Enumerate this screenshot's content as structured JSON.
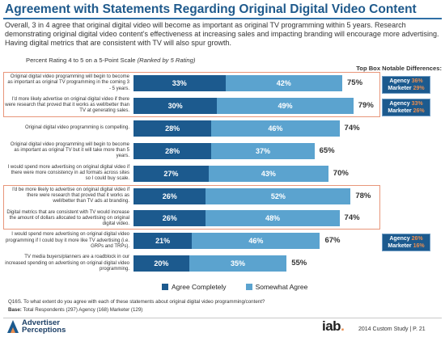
{
  "header": {
    "title": "Agreement with Statements Regarding Original Digital Video Content",
    "intro": "Overall, 3 in 4 agree that original digital video will become as important as original TV programming within 5 years.  Research demonstrating original digital video content’s effectiveness at increasing sales and impacting branding will encourage more advertising.  Having digital metrics that are consistent with TV will also spur growth."
  },
  "chart_subtitle": "Percent Rating 4 to 5 on a 5-Point Scale",
  "chart_subtitle_note": "(Ranked by 5 Rating)",
  "topbox_heading": "Top Box Notable Differences:",
  "colors": {
    "agree_completely": "#1c5a8e",
    "somewhat_agree": "#5ba3cf",
    "highlight_border": "#e8967a",
    "badge_pct": "#e98d4f"
  },
  "chart_data": {
    "type": "bar",
    "stacked": true,
    "orientation": "horizontal",
    "categories": [
      "Original digital video programming will begin to become as important as original TV programming in the coming 3 - 5 years.",
      "I'd more likely advertise on original digital video if there were research that proved that it works as well/better than TV at generating sales.",
      "Original digital video programming is compelling.",
      "Original digital video programming will begin to become as important as original TV but it will take more than 5 years.",
      "I would spend more advertising on original digital video if there were more consistency in ad formats across sites so I could buy scale.",
      "I'd be more likely to advertise on original digital video if there were research that proved that it works as well/better than TV ads at branding.",
      "Digital metrics that are consistent with TV would increase the amount of dollars allocated to advertising on original digital video.",
      "I would spend more advertising on original digital video programming if I could buy it more like TV advertising (i.e. GRPs and TRPs).",
      "TV media buyers/planners are a roadblock in our increased spending on advertising on original digital video programming."
    ],
    "series": [
      {
        "name": "Agree Completely",
        "values": [
          33,
          30,
          28,
          28,
          27,
          26,
          26,
          21,
          20
        ]
      },
      {
        "name": "Somewhat Agree",
        "values": [
          42,
          49,
          46,
          37,
          43,
          52,
          48,
          46,
          35
        ]
      }
    ],
    "totals": [
      75,
      79,
      74,
      65,
      70,
      78,
      74,
      67,
      55
    ],
    "value_labels": {
      "agree": [
        "33%",
        "30%",
        "28%",
        "28%",
        "27%",
        "26%",
        "26%",
        "21%",
        "20%"
      ],
      "somewhat": [
        "42%",
        "49%",
        "46%",
        "37%",
        "43%",
        "52%",
        "48%",
        "46%",
        "35%"
      ],
      "totals": [
        "75%",
        "79%",
        "74%",
        "65%",
        "70%",
        "78%",
        "74%",
        "67%",
        "55%"
      ]
    },
    "highlighted_rows": [
      [
        0,
        1
      ],
      [
        5,
        6
      ]
    ],
    "notable_differences": [
      {
        "row": 0,
        "lines": [
          {
            "who": "Agency",
            "pct": "36%"
          },
          {
            "who": "Marketer",
            "pct": "29%"
          }
        ]
      },
      {
        "row": 1,
        "lines": [
          {
            "who": "Agency",
            "pct": "33%"
          },
          {
            "who": "Marketer",
            "pct": "26%"
          }
        ]
      },
      {
        "row": 7,
        "lines": [
          {
            "who": "Agency",
            "pct": "26%"
          },
          {
            "who": "Marketer",
            "pct": "16%"
          }
        ]
      }
    ],
    "legend": {
      "position": "bottom",
      "items": [
        "Agree Completely",
        "Somewhat Agree"
      ]
    }
  },
  "footer": {
    "question": "Q16S. To what extent do you agree with each of these statements about original digital video programming/content?",
    "base_label": "Base:",
    "base_text": "Total Respondents (297) Agency (168) Marketer (129)",
    "logo_line1": "Advertiser",
    "logo_line2": "Perceptions",
    "iab_text": "iab",
    "iab_dot": ".",
    "study": "2014 Custom Study  |  P. 21"
  }
}
